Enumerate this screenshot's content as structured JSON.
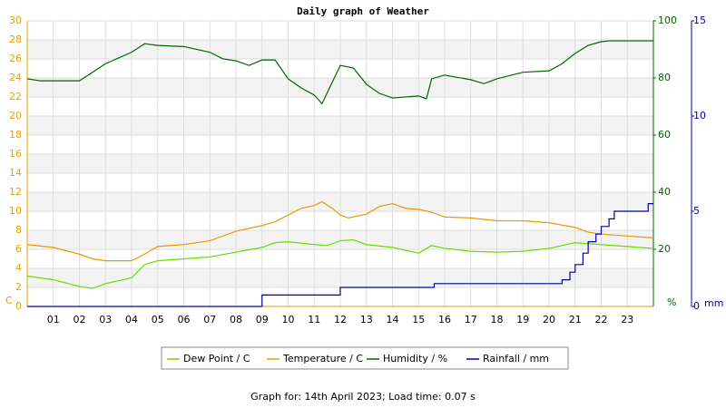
{
  "chart_data": {
    "type": "line",
    "title": "Daily graph of Weather",
    "footer": "Graph for: 14th April 2023; Load time: 0.07 s",
    "ylabel": "C",
    "y2label": "%",
    "y3label": "mm",
    "xlim": [
      0,
      24
    ],
    "xticks": [
      {
        "value": 1,
        "label": "01"
      },
      {
        "value": 2,
        "label": "02"
      },
      {
        "value": 3,
        "label": "03"
      },
      {
        "value": 4,
        "label": "04"
      },
      {
        "value": 5,
        "label": "05"
      },
      {
        "value": 6,
        "label": "06"
      },
      {
        "value": 7,
        "label": "07"
      },
      {
        "value": 8,
        "label": "08"
      },
      {
        "value": 9,
        "label": "09"
      },
      {
        "value": 10,
        "label": "10"
      },
      {
        "value": 11,
        "label": "11"
      },
      {
        "value": 12,
        "label": "12"
      },
      {
        "value": 13,
        "label": "13"
      },
      {
        "value": 14,
        "label": "14"
      },
      {
        "value": 15,
        "label": "15"
      },
      {
        "value": 16,
        "label": "16"
      },
      {
        "value": 17,
        "label": "17"
      },
      {
        "value": 18,
        "label": "18"
      },
      {
        "value": 19,
        "label": "19"
      },
      {
        "value": 20,
        "label": "20"
      },
      {
        "value": 21,
        "label": "21"
      },
      {
        "value": 22,
        "label": "22"
      },
      {
        "value": 23,
        "label": "23"
      }
    ],
    "ylim": [
      0,
      30
    ],
    "yticks": [
      0,
      2,
      4,
      6,
      8,
      10,
      12,
      14,
      16,
      18,
      20,
      22,
      24,
      26,
      28,
      30
    ],
    "y2lim": [
      0,
      100
    ],
    "y2ticks": [
      20,
      40,
      60,
      80,
      100
    ],
    "y3lim": [
      0,
      15
    ],
    "y3ticks": [
      0,
      5,
      10,
      15
    ],
    "grid": true,
    "legend": "bottom",
    "series": [
      {
        "name": "Dew Point / C",
        "color": "#66dd00",
        "axis": "y",
        "x": [
          0,
          1,
          2,
          2.5,
          3,
          4,
          4.5,
          5,
          6,
          7,
          8,
          9,
          9.5,
          10,
          11,
          11.5,
          12,
          12.5,
          13,
          14,
          15,
          15.5,
          16,
          17,
          18,
          19,
          20,
          21,
          22,
          23,
          24
        ],
        "values": [
          3.2,
          2.8,
          2.1,
          1.9,
          2.4,
          3.0,
          4.4,
          4.8,
          5.0,
          5.2,
          5.7,
          6.2,
          6.7,
          6.8,
          6.5,
          6.4,
          6.9,
          7.0,
          6.5,
          6.2,
          5.6,
          6.4,
          6.1,
          5.8,
          5.7,
          5.8,
          6.1,
          6.7,
          6.5,
          6.3,
          6.1
        ]
      },
      {
        "name": "Temperature / C",
        "color": "#e89a00",
        "axis": "y",
        "x": [
          0,
          1,
          2,
          2.5,
          3,
          4,
          4.5,
          5,
          6,
          7,
          8,
          9,
          9.5,
          10,
          10.5,
          11,
          11.3,
          11.7,
          12,
          12.3,
          13,
          13.5,
          14,
          14.5,
          15,
          15.5,
          16,
          17,
          18,
          19,
          20,
          21,
          21.5,
          22,
          23,
          24
        ],
        "values": [
          6.5,
          6.2,
          5.5,
          5.0,
          4.8,
          4.8,
          5.5,
          6.3,
          6.5,
          6.9,
          7.9,
          8.5,
          8.9,
          9.6,
          10.3,
          10.6,
          11.0,
          10.3,
          9.6,
          9.3,
          9.7,
          10.5,
          10.8,
          10.3,
          10.2,
          9.9,
          9.4,
          9.3,
          9.0,
          9.0,
          8.8,
          8.3,
          7.8,
          7.6,
          7.4,
          7.2
        ]
      },
      {
        "name": "Humidity / %",
        "color": "#006600",
        "axis": "y2",
        "x": [
          0,
          0.5,
          1,
          2,
          2.5,
          3,
          4,
          4.5,
          5,
          6,
          7,
          7.5,
          8,
          8.5,
          9,
          9.5,
          10,
          10.5,
          11,
          11.3,
          11.7,
          12,
          12.5,
          13,
          13.5,
          14,
          15,
          15.3,
          15.5,
          16,
          17,
          17.5,
          18,
          19,
          20,
          20.5,
          21,
          21.5,
          22,
          22.3,
          24
        ],
        "values": [
          79.7,
          79,
          79,
          79,
          82,
          85,
          89,
          92,
          91.4,
          91,
          89,
          86.7,
          86,
          84.4,
          86.3,
          86.3,
          79.7,
          76.5,
          74,
          71,
          78.7,
          84.4,
          83.5,
          77.8,
          74.6,
          73,
          73.7,
          72.7,
          79.7,
          81,
          79.4,
          78,
          79.7,
          82,
          82.5,
          85,
          88.6,
          91.4,
          92.7,
          93,
          93
        ]
      },
      {
        "name": "Rainfall / mm",
        "color": "#0000aa",
        "axis": "y3",
        "step": true,
        "x": [
          0,
          9,
          12,
          15.6,
          20.5,
          20.8,
          21,
          21.3,
          21.5,
          21.8,
          22,
          22.3,
          22.5,
          23.8,
          24
        ],
        "values": [
          0,
          0.6,
          1.0,
          1.2,
          1.4,
          1.8,
          2.2,
          2.8,
          3.4,
          3.8,
          4.2,
          4.6,
          5.0,
          5.4,
          5.4
        ]
      }
    ]
  }
}
